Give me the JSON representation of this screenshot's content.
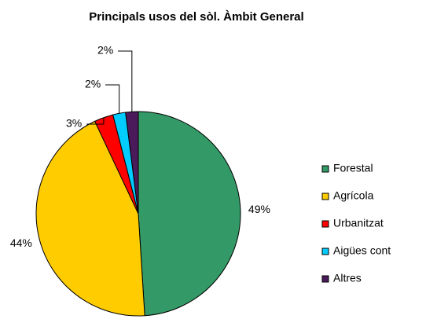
{
  "chart_data": {
    "type": "pie",
    "title": "Principals usos del sòl. Àmbit General",
    "categories": [
      "Forestal",
      "Agrícola",
      "Urbanitzat",
      "Aigües cont",
      "Altres"
    ],
    "values": [
      49,
      44,
      3,
      2,
      2
    ],
    "value_labels": [
      "49%",
      "44%",
      "3%",
      "2%",
      "2%"
    ],
    "colors": [
      "#339966",
      "#ffcc00",
      "#ff0000",
      "#00ccff",
      "#4b1a5a"
    ],
    "legend": "right"
  }
}
